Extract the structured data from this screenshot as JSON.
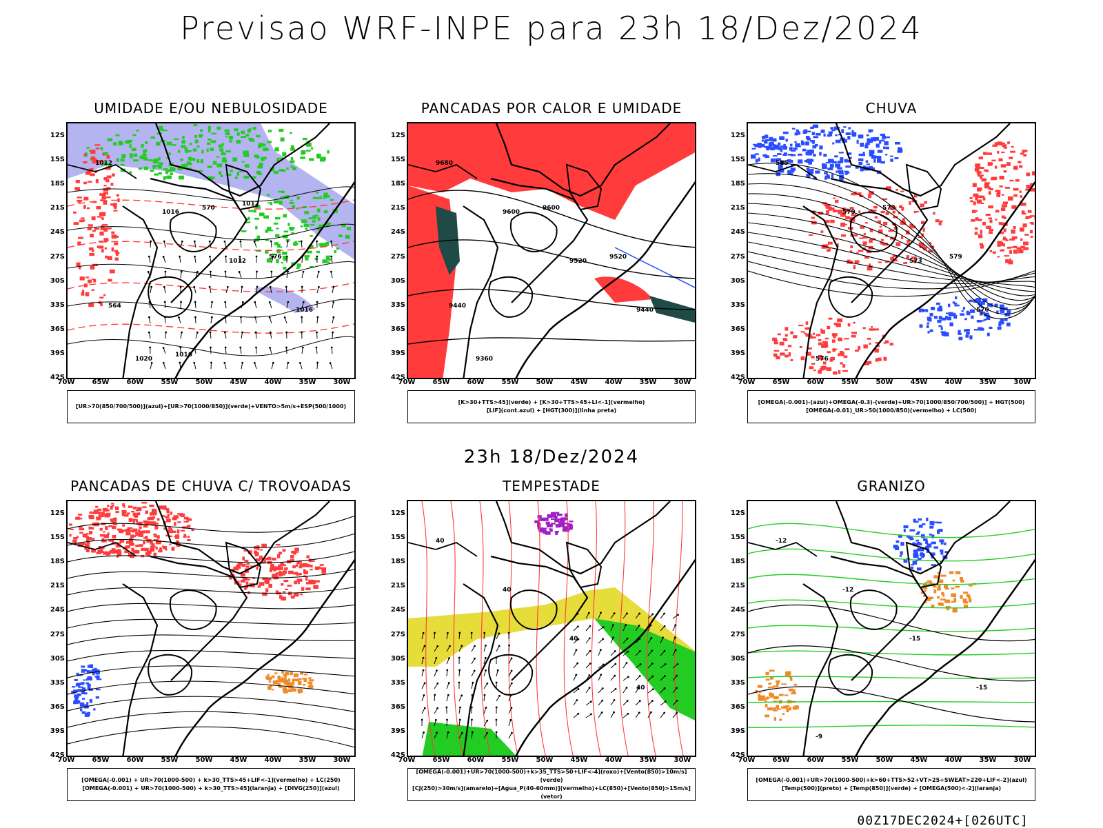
{
  "title": "Previsao WRF-INPE  para 23h 18/Dez/2024",
  "subtitle": "23h 18/Dez/2024",
  "footer": "00Z17DEC2024+[026UTC]",
  "lat_labels": [
    "12S",
    "15S",
    "18S",
    "21S",
    "24S",
    "27S",
    "30S",
    "33S",
    "36S",
    "39S",
    "42S"
  ],
  "lon_labels": [
    "70W",
    "65W",
    "60W",
    "55W",
    "50W",
    "45W",
    "40W",
    "35W",
    "30W"
  ],
  "colors": {
    "red": "#ff3b3b",
    "green": "#22cc22",
    "blue": "#2a4dff",
    "lavender": "#b4b4f0",
    "darkgreen": "#1f4a46",
    "yellow": "#e6dc3a",
    "orange": "#f08a28",
    "purple": "#a020c8"
  },
  "panels": [
    {
      "title": "UMIDADE E/OU NEBULOSIDADE",
      "legend": [
        "[UR>70(850/700/500)](azul)+[UR>70(1000/850)](verde)+VENTO>5m/s+ESP(500/1000)"
      ],
      "labels": [
        "1012",
        "1016",
        "1012",
        "1016",
        "1020",
        "570",
        "576",
        "564",
        "1016",
        "1012"
      ]
    },
    {
      "title": "PANCADAS POR CALOR E UMIDADE",
      "legend": [
        "[K>30+TTS>45](verde) + [K>30+TTS>45+LI<-1](vermelho)",
        "[LIF](cont.azul) + [HGT(300)](linha preta)"
      ],
      "labels": [
        "9680",
        "9600",
        "9520",
        "9440",
        "9360",
        "9600",
        "9520",
        "9440"
      ]
    },
    {
      "title": "CHUVA",
      "legend": [
        "[OMEGA(-0.001)-(azul)+OMEGA(-0.3)-(verde)+UR>70(1000/850/700/500)] + HGT(500)",
        "[OMEGA(-0.01)_UR>50(1000/850)(vermelho) + LC(500)"
      ],
      "labels": [
        "585",
        "579",
        "573",
        "570",
        "576",
        "573",
        "579"
      ]
    },
    {
      "title": "PANCADAS DE CHUVA C/ TROVOADAS",
      "legend": [
        "[OMEGA(-0.001) + UR>70(1000-500) + k>30_TTS>45+LIF<-1](vermelho) + LC(250)",
        "[OMEGA(-0.001) + UR>70(1000-500) + k>30_TTS>45](laranja) + [DIVG(250)](azul)"
      ],
      "labels": []
    },
    {
      "title": "TEMPESTADE",
      "legend": [
        "[OMEGA(-0.001)+UR>70(1000-500)+k>35_TTS>50+LIF<-4](roxo)+[Vento(850)>10m/s](verde)",
        "[CJ(250)>30m/s](amarelo)+[Agua_P(40-60mm)](vermelho)+LC(850)+[Vento(850)>15m/s](vetor)"
      ],
      "labels": [
        "40",
        "40",
        "40",
        "40"
      ]
    },
    {
      "title": "GRANIZO",
      "legend": [
        "[OMEGA(-0.001)+UR>70(1000-500)+k>60+TTS>52+VT>25+SWEAT>220+LIF<-2](azul)",
        "[Temp(500)](preto) + [Temp(850)](verde) + [OMEGA(500)<-2](laranja)"
      ],
      "labels": [
        "-12",
        "-12",
        "-15",
        "-15",
        "-9"
      ]
    }
  ]
}
